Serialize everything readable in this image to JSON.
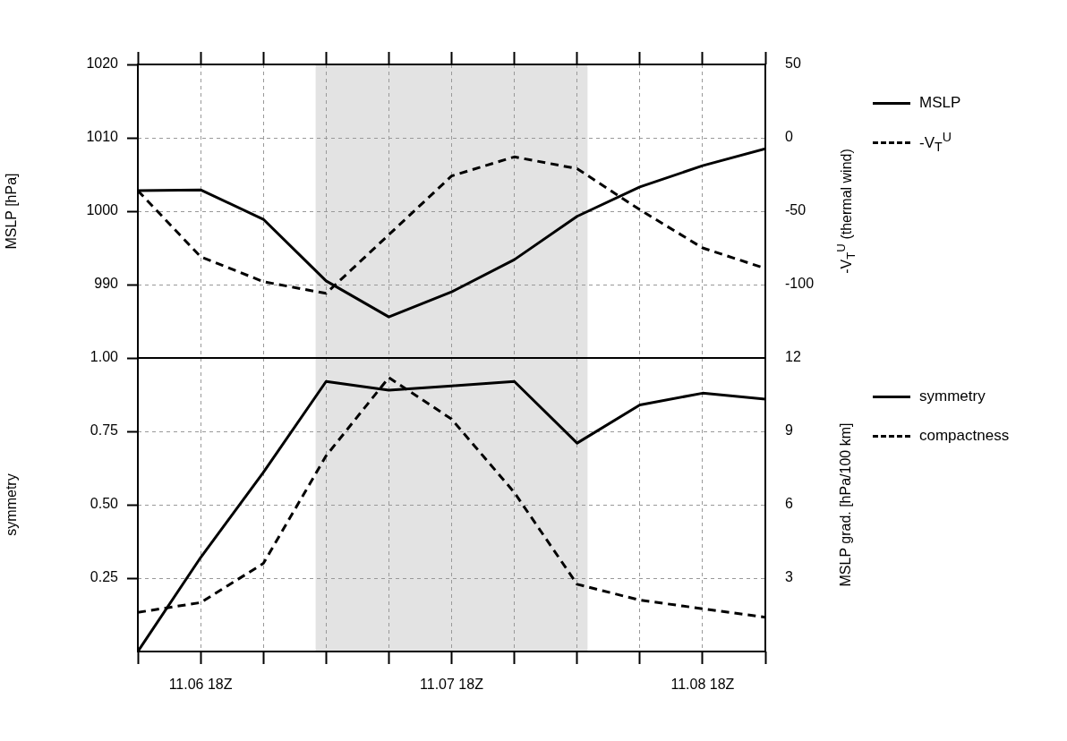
{
  "chart_data": [
    {
      "type": "line",
      "ylabel": "MSLP [hPa]",
      "y2label": "-V$_{T}$$^{U}$ (thermal wind)",
      "x": [
        "--11-06T12:00",
        "--11-06T18:00",
        "--11-07T00:00",
        "--11-07T06:00",
        "--11-07T12:00",
        "--11-07T18:00",
        "--11-08T00:00",
        "--11-08T06:00",
        "--11-08T12:00",
        "--11-08T18:00",
        "--11-09T00:00"
      ],
      "xlim": [
        "--11-06T12:00",
        "--11-09T00:00"
      ],
      "xticks": [
        {
          "value": "--11-06T12:00",
          "label": null
        },
        {
          "value": "--11-06T18:00",
          "label": null
        },
        {
          "value": "--11-07T00:00",
          "label": null
        },
        {
          "value": "--11-07T06:00",
          "label": null
        },
        {
          "value": "--11-07T12:00",
          "label": null
        },
        {
          "value": "--11-07T18:00",
          "label": null
        },
        {
          "value": "--11-08T00:00",
          "label": null
        },
        {
          "value": "--11-08T06:00",
          "label": null
        },
        {
          "value": "--11-08T12:00",
          "label": null
        },
        {
          "value": "--11-08T18:00",
          "label": null
        },
        {
          "value": "--11-09T00:00",
          "label": null
        }
      ],
      "ylim": [
        980,
        1020
      ],
      "yticks": [
        990,
        1000,
        1010,
        1020
      ],
      "y2lim": [
        -150,
        50
      ],
      "y2ticks": [
        -100,
        -50,
        0,
        50
      ],
      "tick_labels": "y",
      "grid": true,
      "legend": "right",
      "marker": "none",
      "bands": [
        {
          "axis": "x",
          "from": "--11-07T05:00",
          "to": "--11-08T07:00",
          "color": "#e3e3e3"
        }
      ],
      "series": [
        {
          "name": "MSLP",
          "color": "#000000",
          "line_style": "solid",
          "values": [
            1002.8,
            1002.9,
            998.9,
            990.5,
            985.6,
            989.0,
            993.4,
            999.3,
            1003.3,
            1006.2,
            1008.5
          ]
        },
        {
          "name": "-V$_{T}$$^{U}$",
          "color": "#000000",
          "line_style": "dashed",
          "axis": "y2",
          "values": [
            -36,
            -81,
            -98,
            -106,
            -66,
            -26,
            -13,
            -21,
            -49,
            -75,
            -89
          ]
        }
      ]
    },
    {
      "type": "line",
      "ylabel": "symmetry",
      "y2label": "MSLP grad. [hPa/100 km]",
      "x": [
        "--11-06T12:00",
        "--11-06T18:00",
        "--11-07T00:00",
        "--11-07T06:00",
        "--11-07T12:00",
        "--11-07T18:00",
        "--11-08T00:00",
        "--11-08T06:00",
        "--11-08T12:00",
        "--11-08T18:00",
        "--11-09T00:00"
      ],
      "xlim": [
        "--11-06T12:00",
        "--11-09T00:00"
      ],
      "xticks": [
        {
          "value": "--11-06T12:00",
          "label": null
        },
        {
          "value": "--11-06T18:00",
          "label": "11.06 18Z"
        },
        {
          "value": "--11-07T00:00",
          "label": null
        },
        {
          "value": "--11-07T06:00",
          "label": null
        },
        {
          "value": "--11-07T12:00",
          "label": null
        },
        {
          "value": "--11-07T18:00",
          "label": "11.07 18Z"
        },
        {
          "value": "--11-08T00:00",
          "label": null
        },
        {
          "value": "--11-08T06:00",
          "label": null
        },
        {
          "value": "--11-08T12:00",
          "label": null
        },
        {
          "value": "--11-08T18:00",
          "label": "11.08 18Z"
        },
        {
          "value": "--11-09T00:00",
          "label": null
        }
      ],
      "ylim": [
        0,
        1
      ],
      "yticks": [
        {
          "value": 0.25,
          "label": "0.25"
        },
        {
          "value": 0.5,
          "label": "0.50"
        },
        {
          "value": 0.75,
          "label": "0.75"
        },
        {
          "value": 1,
          "label": "1.00"
        }
      ],
      "y2lim": [
        0,
        12
      ],
      "y2ticks": [
        3,
        6,
        9,
        12
      ],
      "grid": true,
      "legend": "right",
      "marker": "none",
      "bands": [
        {
          "axis": "x",
          "from": "--11-07T05:00",
          "to": "--11-08T07:00",
          "color": "#e3e3e3"
        }
      ],
      "series": [
        {
          "name": "symmetry",
          "color": "#000000",
          "line_style": "solid",
          "values": [
            0,
            0.32,
            0.61,
            0.92,
            0.89,
            0.905,
            0.92,
            0.71,
            0.84,
            0.88,
            0.86
          ]
        },
        {
          "name": "compactness",
          "color": "#000000",
          "line_style": "dashed",
          "axis": "y2",
          "values": [
            1.6,
            2.0,
            3.6,
            8.0,
            11.2,
            9.5,
            6.5,
            2.75,
            2.1,
            1.75,
            1.4
          ]
        }
      ]
    }
  ]
}
